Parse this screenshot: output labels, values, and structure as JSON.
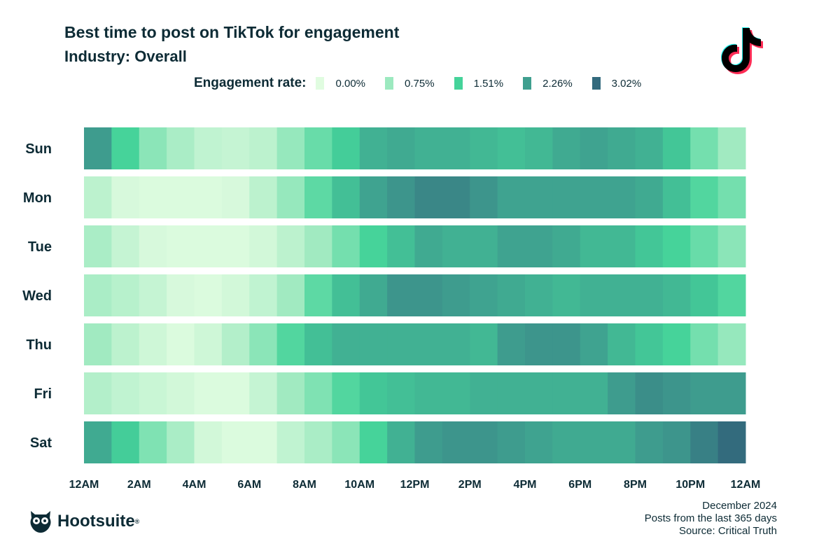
{
  "chart_data": {
    "type": "heatmap",
    "title": "Best time to post on TikTok for engagement",
    "subtitle": "Industry: Overall",
    "legend_title": "Engagement rate:",
    "legend": [
      {
        "label": "0.00%",
        "value": 0.0,
        "color": "#e0fce0"
      },
      {
        "label": "0.75%",
        "value": 0.75,
        "color": "#9ce9bf"
      },
      {
        "label": "1.51%",
        "value": 1.51,
        "color": "#45d39a"
      },
      {
        "label": "2.26%",
        "value": 2.26,
        "color": "#3f9f8f"
      },
      {
        "label": "3.02%",
        "value": 3.02,
        "color": "#336a7d"
      }
    ],
    "rows": [
      "Sun",
      "Mon",
      "Tue",
      "Wed",
      "Thu",
      "Fri",
      "Sat"
    ],
    "x_tick_labels": [
      "12AM",
      "2AM",
      "4AM",
      "6AM",
      "8AM",
      "10AM",
      "12PM",
      "2PM",
      "4PM",
      "6PM",
      "8PM",
      "10PM",
      "12AM"
    ],
    "unit": "%",
    "values": [
      [
        2.3,
        1.5,
        0.9,
        0.6,
        0.35,
        0.3,
        0.4,
        0.8,
        1.2,
        1.6,
        2.0,
        2.1,
        2.0,
        2.0,
        1.9,
        1.8,
        1.9,
        2.1,
        2.2,
        2.1,
        2.0,
        1.7,
        1.1,
        0.7
      ],
      [
        0.4,
        0.1,
        0.05,
        0.05,
        0.05,
        0.1,
        0.4,
        0.8,
        1.3,
        1.8,
        2.2,
        2.4,
        2.6,
        2.6,
        2.4,
        2.2,
        2.2,
        2.2,
        2.2,
        2.2,
        2.1,
        1.8,
        1.4,
        1.1
      ],
      [
        0.6,
        0.3,
        0.1,
        0.05,
        0.05,
        0.05,
        0.15,
        0.4,
        0.7,
        1.1,
        1.5,
        1.8,
        2.1,
        2.0,
        2.0,
        2.2,
        2.2,
        2.1,
        1.9,
        1.9,
        1.7,
        1.5,
        1.2,
        0.9
      ],
      [
        0.6,
        0.45,
        0.3,
        0.1,
        0.05,
        0.15,
        0.35,
        0.7,
        1.3,
        1.8,
        2.1,
        2.4,
        2.4,
        2.3,
        2.2,
        2.1,
        2.0,
        1.9,
        2.0,
        2.0,
        2.0,
        1.9,
        1.7,
        1.4
      ],
      [
        0.7,
        0.4,
        0.2,
        0.05,
        0.2,
        0.5,
        0.9,
        1.4,
        1.8,
        2.0,
        2.0,
        2.0,
        2.0,
        2.0,
        1.9,
        2.3,
        2.4,
        2.4,
        2.2,
        1.9,
        1.7,
        1.5,
        1.1,
        0.8
      ],
      [
        0.5,
        0.35,
        0.25,
        0.15,
        0.05,
        0.05,
        0.3,
        0.7,
        1.0,
        1.4,
        1.7,
        1.8,
        1.9,
        1.9,
        2.0,
        2.0,
        2.0,
        2.0,
        2.0,
        2.3,
        2.5,
        2.4,
        2.3,
        2.3
      ],
      [
        2.1,
        1.6,
        1.0,
        0.6,
        0.15,
        0.05,
        0.05,
        0.35,
        0.6,
        0.9,
        1.5,
        2.0,
        2.3,
        2.4,
        2.4,
        2.3,
        2.2,
        2.1,
        2.1,
        2.1,
        2.3,
        2.4,
        2.7,
        3.0
      ]
    ]
  },
  "footer": {
    "date": "December 2024",
    "note": "Posts from the last 365 days",
    "source": "Source: Critical Truth"
  },
  "brand": {
    "name": "Hootsuite"
  },
  "platform_logo": "tiktok-logo"
}
